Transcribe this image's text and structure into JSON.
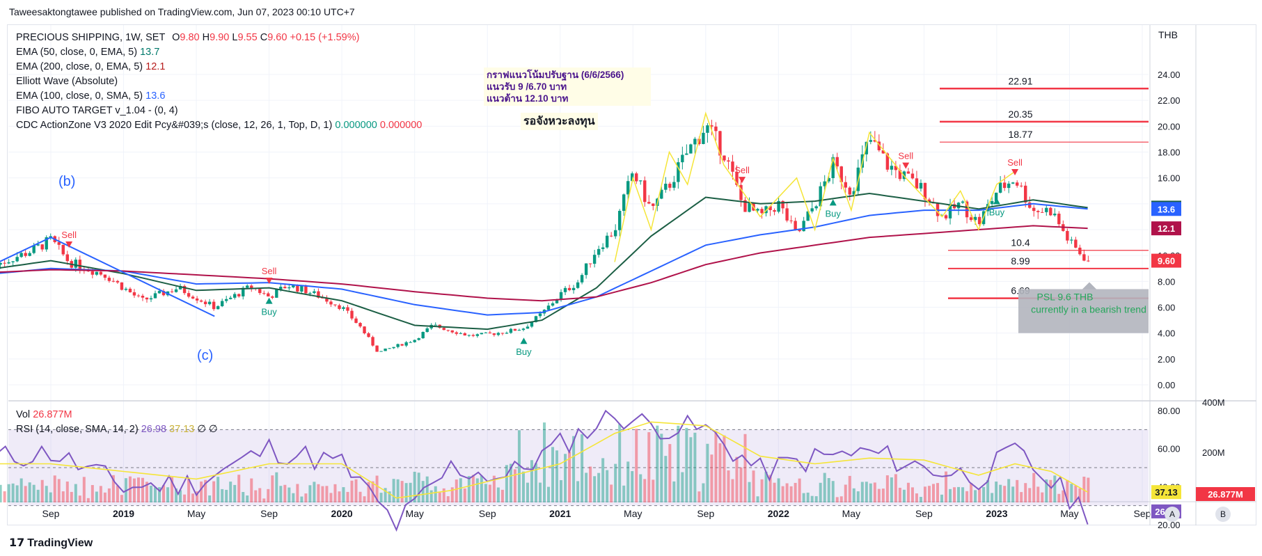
{
  "publisher_line": "Taweesaktongtawee published on TradingView.com, Jun 07, 2023 00:10 UTC+7",
  "brand": "TradingView",
  "currency": "THB",
  "legend": {
    "symbol": "PRECIOUS SHIPPING, 1W, SET",
    "o_label": "O",
    "o": "9.80",
    "h_label": "H",
    "h": "9.90",
    "l_label": "L",
    "l": "9.55",
    "c_label": "C",
    "c": "9.60",
    "change": "+0.15 (+1.59%)",
    "ema50_label": "EMA (50, close, 0, EMA, 5)",
    "ema50_val": "13.7",
    "ema200_label": "EMA (200, close, 0, EMA, 5)",
    "ema200_val": "12.1",
    "elliott_label": "Elliott Wave (Absolute)",
    "ema100_label": "EMA (100, close, 0, SMA, 5)",
    "ema100_val": "13.6",
    "fibo_label": "FIBO AUTO TARGET v_1.04 - (0, 4)",
    "cdc_label": "CDC ActionZone V3 2020 Edit Pcy&#039;s (close, 12, 26, 1, Top, D, 1)",
    "cdc_val1": "0.000000",
    "cdc_val2": "0.000000"
  },
  "annotations": {
    "note_line1": "กราฟแนวโน้มปรับฐาน (6/6/2566)",
    "note_line2": "แนวรับ 9 /6.70 บาท",
    "note_line3": "แนวต้าน 12.10 บาท",
    "waiting_text": "รอจังหวะลงทุน",
    "wave_b": "(b)",
    "wave_c": "(c)",
    "psl_line1": "PSL 9.6 THB",
    "psl_line2": "currently in a bearish trend",
    "sell": "Sell",
    "buy": "Buy"
  },
  "sub_legend": {
    "vol_label": "Vol",
    "vol_val": "26.877M",
    "rsi_label": "RSI (14, close, SMA, 14, 2)",
    "rsi_val": "26.98",
    "rsi_sma_val": "37.13",
    "rsi_extra1": "∅",
    "rsi_extra2": "∅"
  },
  "scale_buttons": [
    "A",
    "B"
  ],
  "colors": {
    "up": "#089981",
    "down": "#f23645",
    "ema50": "#1b5e44",
    "ema100": "#2962ff",
    "ema200": "#b0124a",
    "rsi": "#7e57c2",
    "rsi_sma": "#f5e538",
    "fibo": "#f23645",
    "elliott": "#2962ff"
  },
  "chart_data": [
    {
      "type": "candlestick",
      "title": "PRECIOUS SHIPPING, 1W, SET",
      "x_tick_labels": [
        "Sep",
        "2019",
        "May",
        "Sep",
        "2020",
        "May",
        "Sep",
        "2021",
        "May",
        "Sep",
        "2022",
        "May",
        "Sep",
        "2023",
        "May",
        "Sep"
      ],
      "x_tick_dates": [
        "2018-09",
        "2019-01",
        "2019-05",
        "2019-09",
        "2020-01",
        "2020-05",
        "2020-09",
        "2021-01",
        "2021-05",
        "2021-09",
        "2022-01",
        "2022-05",
        "2022-09",
        "2023-01",
        "2023-05",
        "2023-09"
      ],
      "y_tick_labels": [
        "0.00",
        "2.00",
        "4.00",
        "6.00",
        "8.00",
        "10.00",
        "12.00",
        "14.00",
        "16.00",
        "18.00",
        "20.00",
        "22.00",
        "24.00"
      ],
      "ylim": [
        -0.5,
        24.5
      ],
      "series": [
        {
          "name": "Price (approx. weekly close)",
          "x": [
            "2018-06",
            "2018-08",
            "2018-09",
            "2018-10",
            "2018-12",
            "2019-02",
            "2019-04",
            "2019-06",
            "2019-07",
            "2019-08",
            "2019-09",
            "2019-10",
            "2019-11",
            "2019-12",
            "2020-01",
            "2020-02",
            "2020-03",
            "2020-04",
            "2020-05",
            "2020-06",
            "2020-07",
            "2020-08",
            "2020-09",
            "2020-10",
            "2020-11",
            "2020-12",
            "2021-01",
            "2021-02",
            "2021-03",
            "2021-04",
            "2021-05",
            "2021-06",
            "2021-07",
            "2021-08",
            "2021-09",
            "2021-10",
            "2021-11",
            "2021-12",
            "2022-01",
            "2022-02",
            "2022-03",
            "2022-04",
            "2022-05",
            "2022-06",
            "2022-07",
            "2022-08",
            "2022-09",
            "2022-10",
            "2022-11",
            "2022-12",
            "2023-01",
            "2023-02",
            "2023-03",
            "2023-04",
            "2023-05",
            "2023-06"
          ],
          "values": [
            9.3,
            10.4,
            11.2,
            9.5,
            8.5,
            6.5,
            7.5,
            6.0,
            6.8,
            7.6,
            6.8,
            7.7,
            7.3,
            6.7,
            6.0,
            4.5,
            2.5,
            3.0,
            3.5,
            4.6,
            4.2,
            3.8,
            3.9,
            4.1,
            4.4,
            5.5,
            7.0,
            8.0,
            10.5,
            12.0,
            16.5,
            13.5,
            15.5,
            18.0,
            20.0,
            18.0,
            14.0,
            13.0,
            14.0,
            11.5,
            14.0,
            17.0,
            15.0,
            19.0,
            17.0,
            16.0,
            15.0,
            13.0,
            14.0,
            12.5,
            15.0,
            16.0,
            13.5,
            13.5,
            11.0,
            9.6
          ]
        },
        {
          "name": "EMA (50, close, 0, EMA, 5)",
          "x": [
            "2018-06",
            "2018-09",
            "2019-01",
            "2019-05",
            "2019-09",
            "2020-01",
            "2020-05",
            "2020-09",
            "2020-12",
            "2021-03",
            "2021-06",
            "2021-09",
            "2021-12",
            "2022-03",
            "2022-06",
            "2022-09",
            "2022-12",
            "2023-03",
            "2023-06"
          ],
          "values": [
            9.0,
            9.6,
            8.6,
            7.3,
            7.5,
            6.5,
            4.6,
            4.3,
            5.0,
            7.5,
            11.5,
            14.5,
            14.0,
            14.2,
            14.8,
            14.2,
            13.6,
            14.3,
            13.7
          ]
        },
        {
          "name": "EMA (100, close, 0, SMA, 5)",
          "x": [
            "2018-06",
            "2018-09",
            "2019-01",
            "2019-05",
            "2019-09",
            "2020-01",
            "2020-05",
            "2020-09",
            "2020-12",
            "2021-03",
            "2021-06",
            "2021-09",
            "2021-12",
            "2022-03",
            "2022-06",
            "2022-09",
            "2022-12",
            "2023-03",
            "2023-06"
          ],
          "values": [
            8.6,
            9.0,
            8.8,
            7.8,
            7.9,
            7.4,
            6.2,
            5.4,
            5.6,
            6.8,
            8.8,
            10.8,
            11.6,
            12.2,
            13.1,
            13.5,
            13.5,
            14.0,
            13.6
          ]
        },
        {
          "name": "EMA (200, close, 0, EMA, 5)",
          "x": [
            "2018-06",
            "2018-09",
            "2019-01",
            "2019-05",
            "2019-09",
            "2020-01",
            "2020-05",
            "2020-09",
            "2020-12",
            "2021-03",
            "2021-06",
            "2021-09",
            "2021-12",
            "2022-03",
            "2022-06",
            "2022-09",
            "2022-12",
            "2023-03",
            "2023-06"
          ],
          "values": [
            8.7,
            8.9,
            8.8,
            8.5,
            8.2,
            7.8,
            7.2,
            6.7,
            6.5,
            6.8,
            7.9,
            9.3,
            10.2,
            10.8,
            11.4,
            11.7,
            12.0,
            12.3,
            12.1
          ]
        },
        {
          "name": "FIBO AUTO TARGET",
          "levels": [
            22.91,
            20.35,
            18.77,
            10.4,
            8.99,
            6.69
          ]
        }
      ],
      "last_price": "9.60",
      "last_price_value": 9.6,
      "ema_badges": [
        "13.7",
        "13.6",
        "12.1",
        "9.60"
      ],
      "fibo_labels": [
        "22.91",
        "20.35",
        "18.77",
        "10.4",
        "8.99",
        "6.69"
      ]
    },
    {
      "type": "line",
      "title": "RSI (14, close, SMA, 14, 2)",
      "y_tick_labels": [
        "20.00",
        "40.00",
        "60.00",
        "80.00"
      ],
      "ylim": [
        15,
        82
      ],
      "bands": [
        30,
        50,
        70
      ],
      "series": [
        {
          "name": "RSI",
          "x": [
            "2018-06",
            "2018-09",
            "2019-01",
            "2019-05",
            "2019-09",
            "2020-01",
            "2020-04",
            "2020-07",
            "2020-10",
            "2021-01",
            "2021-04",
            "2021-06",
            "2021-09",
            "2021-12",
            "2022-03",
            "2022-06",
            "2022-09",
            "2022-12",
            "2023-02",
            "2023-04",
            "2023-06"
          ],
          "values": [
            55,
            58,
            40,
            42,
            60,
            52,
            20,
            50,
            45,
            62,
            78,
            72,
            70,
            48,
            55,
            58,
            50,
            45,
            58,
            42,
            26.98
          ]
        },
        {
          "name": "RSI SMA",
          "x": [
            "2018-06",
            "2018-09",
            "2019-01",
            "2019-05",
            "2019-09",
            "2020-01",
            "2020-04",
            "2020-07",
            "2020-10",
            "2021-01",
            "2021-04",
            "2021-06",
            "2021-09",
            "2021-12",
            "2022-03",
            "2022-06",
            "2022-09",
            "2022-12",
            "2023-02",
            "2023-04",
            "2023-06"
          ],
          "values": [
            52,
            52,
            48,
            44,
            52,
            52,
            34,
            38,
            45,
            52,
            68,
            74,
            72,
            56,
            52,
            55,
            54,
            46,
            52,
            48,
            37.13
          ]
        }
      ],
      "last_values": [
        "26.98",
        "37.13"
      ]
    },
    {
      "type": "bar",
      "title": "Vol",
      "right_axis_labels": [
        "400M",
        "200M"
      ],
      "ylim": [
        0,
        400
      ],
      "last_value": "26.877M"
    }
  ]
}
